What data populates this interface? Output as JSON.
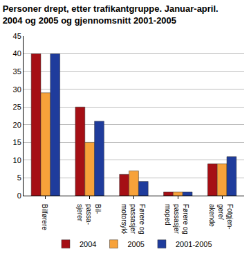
{
  "chart_data": {
    "type": "bar",
    "title": "Personer drept, etter trafikantgruppe. Januar-april.\n2004 og 2005 og gjennomsnitt 2001-2005",
    "categories": [
      "Bilførere",
      "Bil-\npassa-\nsjerer",
      "Førere og\npassasjerer på\nmotorsykkel",
      "Førere og\npassasjerer på\nmoped",
      "Fotgjen-\ngere/\nakende"
    ],
    "series": [
      {
        "name": "2004",
        "color": "#a50f15",
        "values": [
          40,
          25,
          6,
          1,
          9
        ]
      },
      {
        "name": "2005",
        "color": "#f7a23a",
        "values": [
          29,
          15,
          7,
          1,
          9
        ]
      },
      {
        "name": "2001-2005",
        "color": "#1f3c9c",
        "values": [
          40,
          21,
          4,
          1,
          11
        ]
      }
    ],
    "ylim": [
      0,
      45
    ],
    "yticks": [
      0,
      5,
      10,
      15,
      20,
      25,
      30,
      35,
      40,
      45
    ],
    "grid": true,
    "legend": "bottom"
  }
}
